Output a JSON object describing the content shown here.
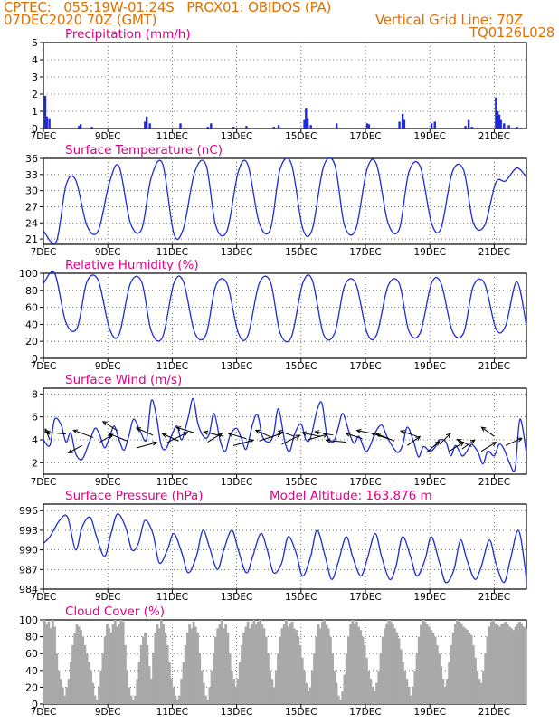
{
  "header": {
    "line1": "CPTEC:   055:19W-01:24S   PROX01: OBIDOS (PA)",
    "line2": "07DEC2020 70Z (GMT)",
    "grid_note": "Vertical Grid Line: 70Z",
    "code": "TQ0126L028"
  },
  "colors": {
    "line": "#1e2bd6",
    "title": "#e0008a",
    "header": "#e07000",
    "cloud": "#a9a9a9",
    "wind_line": "#1e2bd6",
    "arrow": "#000000"
  },
  "x_ticks": [
    "7DEC",
    "9DEC",
    "11DEC",
    "13DEC",
    "15DEC",
    "17DEC",
    "19DEC",
    "21DEC"
  ],
  "x_tick_days": [
    7,
    9,
    11,
    13,
    15,
    17,
    19,
    21
  ],
  "x_range": [
    7,
    22
  ],
  "chart_data": [
    {
      "type": "bar",
      "title": "Precipitation (mm/h)",
      "ylim": [
        0,
        5
      ],
      "yticks": [
        "0",
        "1",
        "2",
        "3",
        "4",
        "5"
      ],
      "x_units": "day of December 2020",
      "points": [
        [
          7.05,
          1.9
        ],
        [
          7.1,
          0.7
        ],
        [
          7.18,
          0.6
        ],
        [
          8.1,
          0.15
        ],
        [
          8.15,
          0.25
        ],
        [
          8.5,
          0.1
        ],
        [
          10.15,
          0.4
        ],
        [
          10.2,
          0.7
        ],
        [
          10.3,
          0.3
        ],
        [
          11.25,
          0.3
        ],
        [
          12.1,
          0.1
        ],
        [
          12.2,
          0.3
        ],
        [
          12.9,
          0.1
        ],
        [
          13.3,
          0.15
        ],
        [
          14.15,
          0.1
        ],
        [
          14.3,
          0.2
        ],
        [
          15.1,
          0.5
        ],
        [
          15.15,
          1.2
        ],
        [
          15.2,
          0.6
        ],
        [
          15.3,
          0.2
        ],
        [
          16.1,
          0.3
        ],
        [
          17.05,
          0.3
        ],
        [
          17.1,
          0.25
        ],
        [
          18.05,
          0.4
        ],
        [
          18.15,
          0.85
        ],
        [
          18.2,
          0.5
        ],
        [
          19.05,
          0.3
        ],
        [
          19.15,
          0.4
        ],
        [
          20.1,
          0.15
        ],
        [
          20.2,
          0.5
        ],
        [
          20.3,
          0.1
        ],
        [
          21.05,
          1.8
        ],
        [
          21.1,
          1.0
        ],
        [
          21.15,
          0.8
        ],
        [
          21.2,
          0.5
        ],
        [
          21.3,
          0.3
        ],
        [
          21.45,
          0.2
        ],
        [
          21.7,
          0.1
        ]
      ]
    },
    {
      "type": "line",
      "title": "Surface Temperature (nC)",
      "ylim": [
        20,
        36
      ],
      "yticks": [
        "21",
        "24",
        "27",
        "30",
        "33",
        "36"
      ],
      "ytick_values": [
        21,
        24,
        27,
        30,
        33,
        36
      ],
      "x_units": "day of December 2020",
      "x": [
        7.0,
        7.4,
        7.7,
        8.0,
        8.35,
        8.7,
        9.05,
        9.35,
        9.7,
        10.05,
        10.35,
        10.7,
        11.05,
        11.35,
        11.7,
        12.05,
        12.35,
        12.7,
        13.05,
        13.35,
        13.7,
        14.05,
        14.35,
        14.7,
        15.05,
        15.35,
        15.7,
        16.05,
        16.35,
        16.7,
        17.05,
        17.35,
        17.7,
        18.05,
        18.35,
        18.7,
        19.05,
        19.35,
        19.7,
        20.05,
        20.35,
        20.7,
        21.05,
        21.35,
        21.7,
        22.0
      ],
      "y": [
        22.5,
        20.5,
        31.0,
        32.0,
        23.5,
        22.5,
        31.5,
        34.5,
        24.0,
        22.8,
        32.5,
        35.0,
        22.0,
        23.0,
        33.5,
        34.8,
        23.5,
        22.5,
        33.5,
        34.8,
        24.0,
        22.8,
        34.0,
        35.0,
        23.0,
        22.8,
        34.5,
        34.8,
        23.5,
        22.8,
        34.0,
        34.8,
        24.0,
        22.8,
        33.5,
        34.5,
        24.0,
        23.0,
        33.5,
        33.8,
        24.0,
        23.5,
        31.5,
        31.8,
        34.2,
        32.5
      ]
    },
    {
      "type": "line",
      "title": "Relative Humidity (%)",
      "ylim": [
        0,
        100
      ],
      "yticks": [
        "0",
        "20",
        "40",
        "60",
        "80",
        "100"
      ],
      "x_units": "day of December 2020",
      "x": [
        7.0,
        7.35,
        7.7,
        8.05,
        8.35,
        8.7,
        9.05,
        9.35,
        9.7,
        10.05,
        10.35,
        10.7,
        11.05,
        11.35,
        11.7,
        12.05,
        12.35,
        12.7,
        13.05,
        13.35,
        13.7,
        14.05,
        14.35,
        14.7,
        15.05,
        15.35,
        15.7,
        16.05,
        16.35,
        16.7,
        17.05,
        17.35,
        17.7,
        18.05,
        18.35,
        18.7,
        19.05,
        19.35,
        19.7,
        20.05,
        20.35,
        20.7,
        21.05,
        21.35,
        21.7,
        22.0
      ],
      "y": [
        88,
        100,
        42,
        36,
        90,
        92,
        35,
        28,
        88,
        90,
        32,
        25,
        88,
        90,
        30,
        28,
        85,
        88,
        30,
        27,
        88,
        90,
        30,
        25,
        88,
        92,
        28,
        30,
        85,
        88,
        30,
        28,
        85,
        88,
        32,
        30,
        88,
        88,
        32,
        30,
        85,
        88,
        35,
        38,
        90,
        38
      ]
    },
    {
      "type": "line",
      "title": "Surface Wind (m/s)",
      "ylim": [
        1,
        8.5
      ],
      "yticks": [
        "2",
        "4",
        "6",
        "8"
      ],
      "ytick_values": [
        2,
        4,
        6,
        8
      ],
      "x_units": "day of December 2020",
      "x": [
        7.0,
        7.2,
        7.35,
        7.55,
        7.7,
        7.85,
        8.0,
        8.2,
        8.4,
        8.6,
        8.75,
        8.9,
        9.05,
        9.2,
        9.35,
        9.5,
        9.65,
        9.8,
        10.0,
        10.2,
        10.35,
        10.5,
        10.65,
        10.8,
        11.0,
        11.15,
        11.3,
        11.5,
        11.65,
        11.8,
        12.0,
        12.15,
        12.3,
        12.5,
        12.65,
        12.8,
        13.0,
        13.15,
        13.3,
        13.5,
        13.65,
        13.8,
        14.0,
        14.15,
        14.3,
        14.5,
        14.65,
        14.8,
        15.0,
        15.15,
        15.3,
        15.5,
        15.65,
        15.8,
        16.0,
        16.15,
        16.3,
        16.5,
        16.65,
        16.8,
        17.0,
        17.15,
        17.3,
        17.5,
        17.65,
        17.8,
        18.0,
        18.15,
        18.3,
        18.5,
        18.65,
        18.8,
        19.0,
        19.15,
        19.3,
        19.5,
        19.65,
        19.8,
        20.0,
        20.15,
        20.3,
        20.5,
        20.65,
        20.8,
        21.0,
        21.15,
        21.3,
        21.5,
        21.65,
        21.8,
        22.0
      ],
      "y": [
        4.0,
        3.5,
        5.8,
        5.3,
        3.8,
        4.6,
        2.8,
        2.3,
        3.6,
        5.0,
        4.4,
        3.3,
        4.2,
        5.2,
        4.0,
        3.1,
        4.3,
        5.8,
        4.8,
        4.0,
        7.4,
        6.2,
        3.6,
        3.2,
        4.5,
        5.2,
        4.0,
        6.0,
        7.6,
        5.4,
        4.2,
        4.5,
        6.3,
        3.8,
        3.0,
        4.4,
        5.0,
        4.1,
        3.2,
        5.4,
        6.2,
        4.3,
        3.8,
        4.5,
        6.7,
        3.8,
        3.0,
        4.5,
        5.4,
        4.0,
        4.2,
        6.6,
        7.2,
        4.5,
        3.8,
        5.0,
        6.3,
        4.6,
        3.7,
        4.3,
        3.0,
        3.5,
        4.6,
        5.3,
        4.4,
        3.6,
        2.9,
        3.5,
        5.1,
        3.8,
        2.5,
        3.4,
        3.0,
        3.3,
        4.0,
        3.8,
        2.6,
        3.5,
        2.6,
        3.0,
        3.6,
        2.9,
        1.9,
        3.0,
        2.6,
        3.6,
        3.2,
        1.8,
        1.5,
        5.8,
        2.8
      ],
      "arrows": [
        [
          7.2,
          4.0,
          -5,
          -12
        ],
        [
          7.7,
          4.5,
          -22,
          -2
        ],
        [
          8.2,
          3.5,
          -15,
          8
        ],
        [
          8.55,
          4.2,
          -22,
          -8
        ],
        [
          8.75,
          3.8,
          14,
          -8
        ],
        [
          9.3,
          4.8,
          -16,
          -10
        ],
        [
          9.6,
          3.9,
          -20,
          -8
        ],
        [
          9.9,
          3.3,
          22,
          -6
        ],
        [
          10.4,
          4.4,
          -18,
          -8
        ],
        [
          10.8,
          3.7,
          24,
          -12
        ],
        [
          11.2,
          3.9,
          -18,
          -8
        ],
        [
          11.7,
          4.6,
          -20,
          -6
        ],
        [
          12.1,
          3.8,
          16,
          -10
        ],
        [
          12.6,
          4.3,
          -22,
          -5
        ],
        [
          12.9,
          3.5,
          22,
          -6
        ],
        [
          13.3,
          4.1,
          -20,
          -6
        ],
        [
          13.7,
          3.9,
          24,
          -8
        ],
        [
          14.1,
          4.2,
          -18,
          -8
        ],
        [
          14.4,
          3.6,
          20,
          -10
        ],
        [
          14.8,
          4.3,
          -18,
          -6
        ],
        [
          15.2,
          4.0,
          22,
          -6
        ],
        [
          15.6,
          4.3,
          -20,
          -4
        ],
        [
          16.0,
          4.4,
          -20,
          -4
        ],
        [
          16.4,
          3.8,
          -22,
          -2
        ],
        [
          16.9,
          4.1,
          -18,
          -6
        ],
        [
          17.3,
          4.5,
          -20,
          -4
        ],
        [
          17.7,
          4.1,
          -18,
          -6
        ],
        [
          17.9,
          3.9,
          -20,
          -8
        ],
        [
          18.3,
          3.5,
          14,
          -10
        ],
        [
          18.6,
          4.3,
          -18,
          -6
        ],
        [
          18.9,
          2.9,
          14,
          -12
        ],
        [
          19.3,
          3.6,
          12,
          -12
        ],
        [
          19.6,
          3.0,
          16,
          -10
        ],
        [
          20.0,
          3.2,
          14,
          -10
        ],
        [
          20.3,
          3.4,
          -16,
          -8
        ],
        [
          20.6,
          3.0,
          16,
          -10
        ],
        [
          21.0,
          4.3,
          -14,
          -10
        ],
        [
          21.35,
          3.5,
          18,
          -8
        ]
      ]
    },
    {
      "type": "line",
      "title": "Surface Pressure (hPa)",
      "annotation": "Model Altitude: 163.876  m",
      "ylim": [
        984,
        997
      ],
      "yticks": [
        "984",
        "987",
        "990",
        "993",
        "996"
      ],
      "ytick_values": [
        984,
        987,
        990,
        993,
        996
      ],
      "x_units": "day of December 2020",
      "x": [
        7.0,
        7.2,
        7.5,
        7.75,
        8.0,
        8.2,
        8.45,
        8.65,
        8.9,
        9.1,
        9.3,
        9.55,
        9.75,
        9.95,
        10.15,
        10.4,
        10.6,
        10.85,
        11.05,
        11.3,
        11.5,
        11.75,
        11.95,
        12.15,
        12.4,
        12.6,
        12.85,
        13.05,
        13.3,
        13.5,
        13.75,
        13.95,
        14.15,
        14.4,
        14.6,
        14.85,
        15.05,
        15.3,
        15.5,
        15.75,
        15.95,
        16.15,
        16.4,
        16.6,
        16.85,
        17.05,
        17.3,
        17.5,
        17.75,
        17.95,
        18.15,
        18.4,
        18.6,
        18.85,
        19.05,
        19.3,
        19.5,
        19.75,
        19.95,
        20.15,
        20.4,
        20.6,
        20.85,
        21.05,
        21.3,
        21.5,
        21.75,
        21.95,
        22.0
      ],
      "y": [
        991,
        992,
        994.5,
        995,
        990,
        993.5,
        995,
        992,
        989,
        992.5,
        995.5,
        993.5,
        990,
        991,
        994.5,
        992.5,
        988,
        990,
        992.5,
        989.5,
        986.5,
        989,
        993,
        990.5,
        987,
        990,
        993,
        990,
        986.5,
        989,
        992.5,
        990,
        986.5,
        988,
        992,
        989.5,
        986,
        989,
        993,
        989,
        985.5,
        988,
        992,
        989,
        986,
        988.5,
        992.5,
        989,
        985.5,
        987.5,
        992,
        989,
        986,
        988.5,
        992,
        988,
        985,
        987,
        991.5,
        988.5,
        985.5,
        987.5,
        991.5,
        988,
        985,
        988.5,
        993,
        987.5,
        984.5
      ]
    },
    {
      "type": "bar",
      "title": "Cloud Cover (%)",
      "ylim": [
        0,
        100
      ],
      "yticks": [
        "0",
        "20",
        "40",
        "60",
        "80",
        "100"
      ],
      "x_units": "day of December 2020",
      "x_start": 7.0,
      "step": 0.0625,
      "values": [
        100,
        95,
        98,
        90,
        100,
        92,
        60,
        40,
        30,
        20,
        10,
        20,
        30,
        50,
        70,
        85,
        95,
        92,
        88,
        80,
        70,
        60,
        50,
        40,
        25,
        10,
        5,
        20,
        40,
        60,
        80,
        95,
        90,
        85,
        95,
        100,
        92,
        95,
        100,
        98,
        70,
        40,
        20,
        10,
        5,
        10,
        30,
        50,
        70,
        80,
        85,
        70,
        45,
        30,
        60,
        85,
        95,
        90,
        100,
        95,
        85,
        70,
        50,
        30,
        20,
        10,
        5,
        10,
        30,
        50,
        70,
        85,
        95,
        90,
        98,
        92,
        85,
        60,
        40,
        25,
        10,
        5,
        20,
        40,
        60,
        80,
        90,
        95,
        100,
        90,
        95,
        85,
        60,
        40,
        30,
        20,
        30,
        50,
        70,
        85,
        92,
        98,
        90,
        95,
        100,
        95,
        98,
        100,
        95,
        90,
        80,
        60,
        40,
        30,
        20,
        40,
        60,
        80,
        90,
        95,
        100,
        92,
        96,
        98,
        90,
        88,
        80,
        70,
        55,
        40,
        25,
        15,
        20,
        40,
        60,
        80,
        95,
        90,
        98,
        100,
        94,
        90,
        80,
        60,
        40,
        25,
        10,
        5,
        15,
        35,
        60,
        80,
        95,
        100,
        96,
        98,
        92,
        88,
        80,
        70,
        55,
        40,
        30,
        20,
        15,
        25,
        40,
        60,
        80,
        90,
        96,
        100,
        98,
        95,
        90,
        85,
        78,
        65,
        50,
        40,
        30,
        20,
        10,
        20,
        40,
        60,
        80,
        94,
        100,
        98,
        95,
        92,
        88,
        85,
        80,
        70,
        60,
        45,
        30,
        20,
        30,
        50,
        70,
        85,
        95,
        100,
        98,
        96,
        92,
        90,
        88,
        85,
        82,
        70,
        55,
        40,
        30,
        25,
        40,
        60,
        80,
        92,
        98,
        100,
        96,
        94,
        92,
        95,
        96,
        98,
        95,
        92,
        90,
        88,
        92,
        95,
        98,
        96,
        92,
        90
      ]
    }
  ]
}
